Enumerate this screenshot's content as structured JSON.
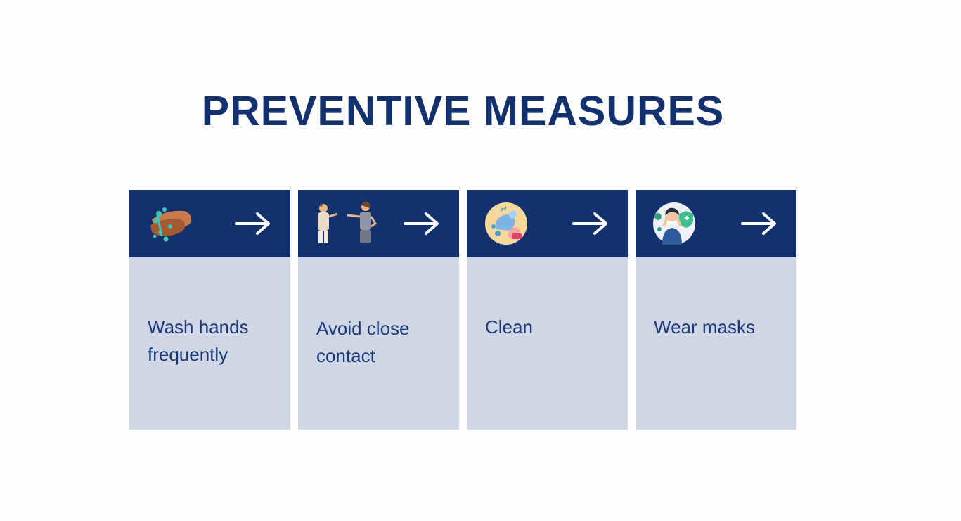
{
  "title": "PREVENTIVE MEASURES",
  "colors": {
    "primary": "#13306f",
    "card_body": "#d0d6e4",
    "background": "#fdfdfe"
  },
  "cards": [
    {
      "label": "Wash hands frequently",
      "icon": "hand-washing-icon",
      "arrow": "arrow-right-icon"
    },
    {
      "label": "Avoid close contact",
      "icon": "social-distance-icon",
      "arrow": "arrow-right-icon"
    },
    {
      "label": "Clean",
      "icon": "cleaning-icon",
      "arrow": "arrow-right-icon"
    },
    {
      "label": "Wear masks",
      "icon": "mask-icon",
      "arrow": "arrow-right-icon"
    }
  ]
}
